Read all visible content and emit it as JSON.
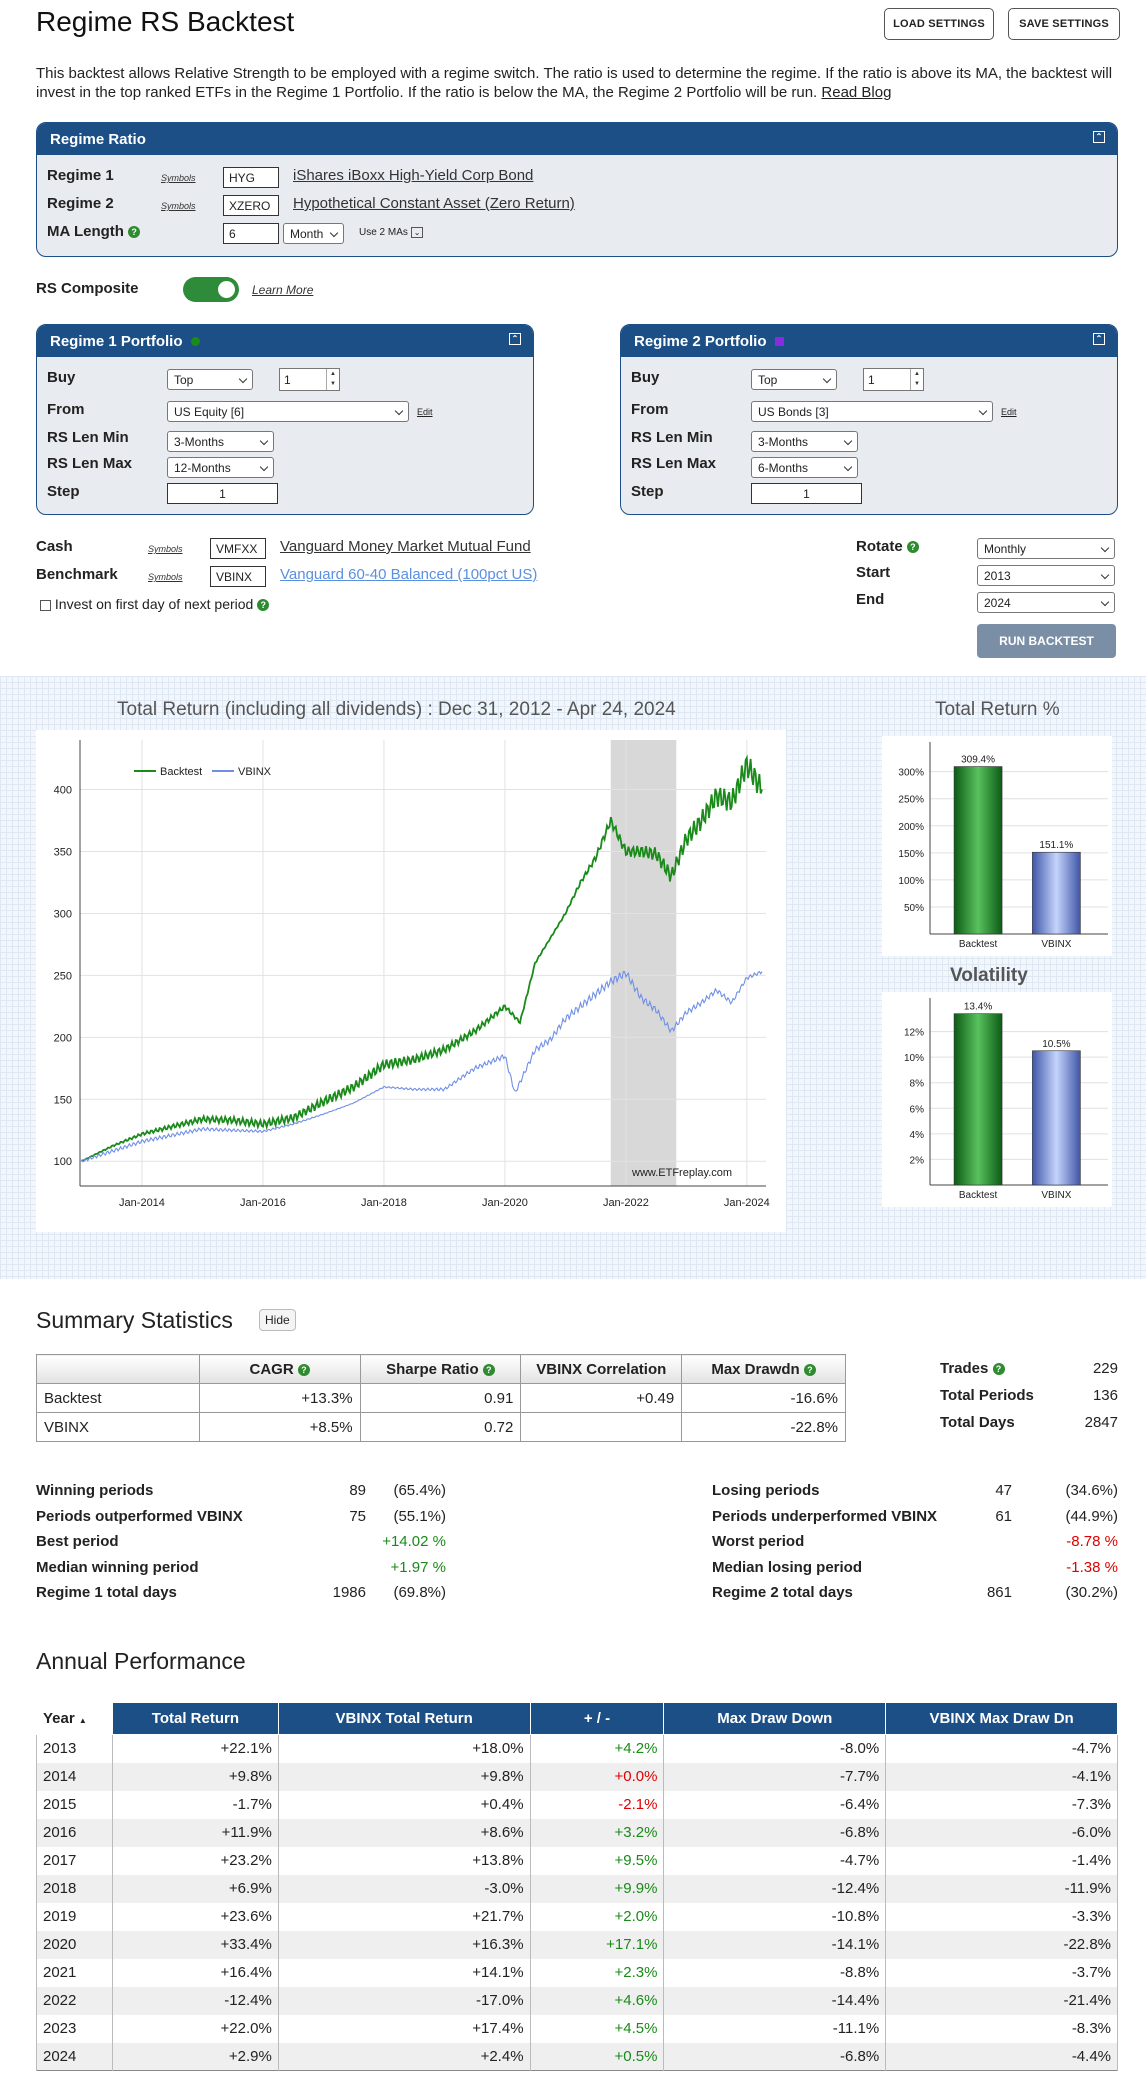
{
  "header": {
    "title": "Regime RS Backtest",
    "load_label": "LOAD SETTINGS",
    "save_label": "SAVE SETTINGS"
  },
  "description": {
    "text": "This backtest allows Relative Strength to be employed with a regime switch. The ratio is used to determine the regime. If the ratio is above its MA, the backtest will invest in the top ranked ETFs in the Regime 1 Portfolio. If the ratio is below the MA, the Regime 2 Portfolio will be run.",
    "link": "Read Blog"
  },
  "regime_ratio": {
    "title": "Regime Ratio",
    "symbols_label": "Symbols",
    "r1_label": "Regime 1",
    "r1_symbol": "HYG",
    "r1_name": "iShares iBoxx High-Yield Corp Bond",
    "r2_label": "Regime 2",
    "r2_symbol": "XZERO",
    "r2_name": "Hypothetical Constant Asset (Zero Return)",
    "ma_label": "MA Length",
    "ma_value": "6",
    "ma_unit": "Month",
    "use2": "Use 2 MAs"
  },
  "rs_composite": {
    "label": "RS Composite",
    "learn": "Learn More"
  },
  "portfolio1": {
    "title": "Regime 1 Portfolio",
    "dot_color": "#1a8a1a",
    "buy_label": "Buy",
    "buy_value": "Top",
    "buy_count": "1",
    "from_label": "From",
    "from_value": "US Equity [6]",
    "edit": "Edit",
    "min_label": "RS Len Min",
    "min_value": "3-Months",
    "max_label": "RS Len Max",
    "max_value": "12-Months",
    "step_label": "Step",
    "step_value": "1"
  },
  "portfolio2": {
    "title": "Regime 2 Portfolio",
    "dot_color": "#8a2be2",
    "buy_label": "Buy",
    "buy_value": "Top",
    "buy_count": "1",
    "from_label": "From",
    "from_value": "US Bonds [3]",
    "edit": "Edit",
    "min_label": "RS Len Min",
    "min_value": "3-Months",
    "max_label": "RS Len Max",
    "max_value": "6-Months",
    "step_label": "Step",
    "step_value": "1"
  },
  "cash": {
    "label": "Cash",
    "symbols": "Symbols",
    "symbol": "VMFXX",
    "name": "Vanguard Money Market Mutual Fund"
  },
  "benchmark": {
    "label": "Benchmark",
    "symbols": "Symbols",
    "symbol": "VBINX",
    "name": "Vanguard 60-40 Balanced (100pct US)"
  },
  "invest_first": "Invest on first day of next period",
  "rotate": {
    "label": "Rotate",
    "value": "Monthly"
  },
  "start": {
    "label": "Start",
    "value": "2013"
  },
  "end": {
    "label": "End",
    "value": "2024"
  },
  "run_label": "RUN BACKTEST",
  "main_chart_title": "Total Return (including all dividends) : Dec 31, 2012 - Apr 24, 2024",
  "tr_title": "Total Return %",
  "vol_title": "Volatility",
  "watermark": "www.ETFreplay.com",
  "chart_data": [
    {
      "type": "line",
      "title": "Total Return (including all dividends) : Dec 31, 2012 - Apr 24, 2024",
      "x_ticks": [
        "Jan-2014",
        "Jan-2016",
        "Jan-2018",
        "Jan-2020",
        "Jan-2022",
        "Jan-2024"
      ],
      "y_ticks": [
        100,
        150,
        200,
        250,
        300,
        350,
        400
      ],
      "ylim": [
        80,
        440
      ],
      "legend": "top-left",
      "shaded_region": [
        "2021-10",
        "2022-11"
      ],
      "series": [
        {
          "name": "Backtest",
          "color": "#1a8a1a",
          "x": [
            "2013-01",
            "2013-07",
            "2014-01",
            "2014-07",
            "2015-01",
            "2015-07",
            "2016-01",
            "2016-07",
            "2017-01",
            "2017-07",
            "2018-01",
            "2018-07",
            "2019-01",
            "2019-07",
            "2020-01",
            "2020-04",
            "2020-07",
            "2020-10",
            "2021-01",
            "2021-04",
            "2021-07",
            "2021-10",
            "2022-01",
            "2022-04",
            "2022-07",
            "2022-10",
            "2023-01",
            "2023-04",
            "2023-07",
            "2023-10",
            "2024-01",
            "2024-04"
          ],
          "values": [
            100,
            112,
            122,
            128,
            134,
            133,
            130,
            135,
            148,
            160,
            178,
            182,
            190,
            205,
            225,
            212,
            260,
            280,
            300,
            325,
            345,
            375,
            350,
            350,
            348,
            330,
            360,
            375,
            395,
            390,
            420,
            400
          ]
        },
        {
          "name": "VBINX",
          "color": "#6f8fe6",
          "x": [
            "2013-01",
            "2013-07",
            "2014-01",
            "2014-07",
            "2015-01",
            "2015-07",
            "2016-01",
            "2016-07",
            "2017-01",
            "2017-07",
            "2018-01",
            "2018-07",
            "2019-01",
            "2019-07",
            "2020-01",
            "2020-03",
            "2020-07",
            "2020-10",
            "2021-01",
            "2021-04",
            "2021-07",
            "2021-10",
            "2022-01",
            "2022-04",
            "2022-07",
            "2022-10",
            "2023-01",
            "2023-04",
            "2023-07",
            "2023-10",
            "2024-01",
            "2024-04"
          ],
          "values": [
            100,
            108,
            116,
            121,
            126,
            125,
            124,
            130,
            138,
            147,
            160,
            158,
            158,
            175,
            185,
            155,
            190,
            198,
            215,
            225,
            235,
            245,
            252,
            232,
            222,
            205,
            220,
            228,
            238,
            228,
            248,
            253
          ]
        }
      ]
    },
    {
      "type": "bar",
      "title": "Total Return %",
      "categories": [
        "Backtest",
        "VBINX"
      ],
      "values": [
        309.4,
        151.1
      ],
      "labels": [
        "309.4%",
        "151.1%"
      ],
      "y_ticks": [
        "50%",
        "100%",
        "150%",
        "200%",
        "250%",
        "300%"
      ],
      "ylim": [
        0,
        340
      ]
    },
    {
      "type": "bar",
      "title": "Volatility",
      "categories": [
        "Backtest",
        "VBINX"
      ],
      "values": [
        13.4,
        10.5
      ],
      "labels": [
        "13.4%",
        "10.5%"
      ],
      "y_ticks": [
        "2%",
        "4%",
        "6%",
        "8%",
        "10%",
        "12%"
      ],
      "ylim": [
        0,
        14
      ]
    }
  ],
  "summary": {
    "title": "Summary Statistics",
    "hide": "Hide",
    "headers": [
      "",
      "CAGR",
      "Sharpe Ratio",
      "VBINX Correlation",
      "Max Drawdn"
    ],
    "rows": [
      [
        "Backtest",
        "+13.3%",
        "0.91",
        "+0.49",
        "-16.6%"
      ],
      [
        "VBINX",
        "+8.5%",
        "0.72",
        "",
        "-22.8%"
      ]
    ],
    "trades_label": "Trades",
    "trades": "229",
    "periods_label": "Total Periods",
    "periods": "136",
    "days_label": "Total Days",
    "days": "2847"
  },
  "periods_left": [
    [
      "Winning periods",
      "89",
      "(65.4%)"
    ],
    [
      "Periods outperformed VBINX",
      "75",
      "(55.1%)"
    ],
    [
      "Best period",
      "",
      "+14.02 %"
    ],
    [
      "Median winning period",
      "",
      "+1.97 %"
    ],
    [
      "Regime 1 total days",
      "1986",
      "(69.8%)"
    ]
  ],
  "periods_right": [
    [
      "Losing periods",
      "47",
      "(34.6%)"
    ],
    [
      "Periods underperformed VBINX",
      "61",
      "(44.9%)"
    ],
    [
      "Worst period",
      "",
      "-8.78 %"
    ],
    [
      "Median losing period",
      "",
      "-1.38 %"
    ],
    [
      "Regime 2 total days",
      "861",
      "(30.2%)"
    ]
  ],
  "annual": {
    "title": "Annual Performance",
    "headers": [
      "Year",
      "Total Return",
      "VBINX Total Return",
      "+ / -",
      "Max Draw Down",
      "VBINX Max Draw Dn"
    ],
    "rows": [
      [
        "2013",
        "+22.1%",
        "+18.0%",
        "+4.2%",
        "-8.0%",
        "-4.7%"
      ],
      [
        "2014",
        "+9.8%",
        "+9.8%",
        "+0.0%",
        "-7.7%",
        "-4.1%"
      ],
      [
        "2015",
        "-1.7%",
        "+0.4%",
        "-2.1%",
        "-6.4%",
        "-7.3%"
      ],
      [
        "2016",
        "+11.9%",
        "+8.6%",
        "+3.2%",
        "-6.8%",
        "-6.0%"
      ],
      [
        "2017",
        "+23.2%",
        "+13.8%",
        "+9.5%",
        "-4.7%",
        "-1.4%"
      ],
      [
        "2018",
        "+6.9%",
        "-3.0%",
        "+9.9%",
        "-12.4%",
        "-11.9%"
      ],
      [
        "2019",
        "+23.6%",
        "+21.7%",
        "+2.0%",
        "-10.8%",
        "-3.3%"
      ],
      [
        "2020",
        "+33.4%",
        "+16.3%",
        "+17.1%",
        "-14.1%",
        "-22.8%"
      ],
      [
        "2021",
        "+16.4%",
        "+14.1%",
        "+2.3%",
        "-8.8%",
        "-3.7%"
      ],
      [
        "2022",
        "-12.4%",
        "-17.0%",
        "+4.6%",
        "-14.4%",
        "-21.4%"
      ],
      [
        "2023",
        "+22.0%",
        "+17.4%",
        "+4.5%",
        "-11.1%",
        "-8.3%"
      ],
      [
        "2024",
        "+2.9%",
        "+2.4%",
        "+0.5%",
        "-6.8%",
        "-4.4%"
      ]
    ]
  }
}
